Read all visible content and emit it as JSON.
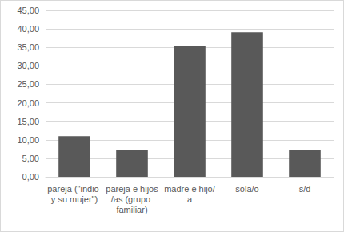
{
  "chart_data": {
    "type": "bar",
    "categories": [
      "pareja (\"indio y su mujer\")",
      "pareja e hijos/as (grupo familiar)",
      "madre e hijo/a",
      "sola/o",
      "s/d"
    ],
    "values": [
      11.0,
      7.2,
      35.3,
      39.1,
      7.2
    ],
    "color": "#595959",
    "ylim": [
      0,
      45
    ],
    "yticks": [
      {
        "value": 0,
        "label": "0,00"
      },
      {
        "value": 5,
        "label": "5,00"
      },
      {
        "value": 10,
        "label": "10,00"
      },
      {
        "value": 15,
        "label": "15,00"
      },
      {
        "value": 20,
        "label": "20,00"
      },
      {
        "value": 25,
        "label": "25,00"
      },
      {
        "value": 30,
        "label": "30,00"
      },
      {
        "value": 35,
        "label": "35,00"
      },
      {
        "value": 40,
        "label": "40,00"
      },
      {
        "value": 45,
        "label": "45,00"
      }
    ],
    "grid": true
  }
}
